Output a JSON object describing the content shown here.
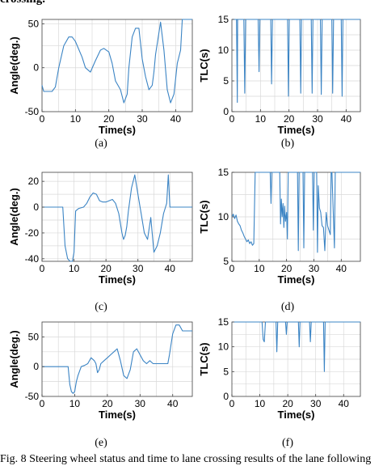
{
  "top_fragment": "crossing.",
  "caption": "Fig. 8 Steering wheel status and time to lane crossing results of the lane following",
  "colors": {
    "line": "#3b84c4",
    "grid": "#d9d9d9",
    "axis": "#404040"
  },
  "chart_data": [
    {
      "id": "a",
      "type": "line",
      "sublabel": "(a)",
      "xlabel": "Time(s)",
      "ylabel": "Angle(deg.)",
      "xlim": [
        0,
        45
      ],
      "ylim": [
        -50,
        55
      ],
      "xticks": [
        0,
        10,
        20,
        30,
        40
      ],
      "yticks": [
        -50,
        0,
        50
      ],
      "grid": true,
      "x": [
        0,
        0.5,
        3,
        4,
        5,
        6.5,
        8,
        9,
        10,
        12,
        13,
        14.5,
        16,
        17.5,
        18.5,
        20,
        21,
        22,
        23.5,
        24.5,
        25.5,
        26,
        27,
        28,
        29,
        30,
        31,
        32,
        33,
        33.5,
        34,
        35,
        35.5,
        36.5,
        37.5,
        38.5,
        39.5,
        40.5,
        41.5,
        42,
        45
      ],
      "y": [
        -20,
        -27,
        -27,
        -22,
        0,
        25,
        35,
        35,
        30,
        12,
        0,
        -5,
        8,
        20,
        22,
        18,
        5,
        -15,
        -25,
        -40,
        -30,
        0,
        35,
        45,
        45,
        10,
        -10,
        -25,
        -20,
        -5,
        15,
        40,
        52,
        20,
        -25,
        -40,
        -30,
        5,
        20,
        55,
        55
      ]
    },
    {
      "id": "b",
      "type": "line",
      "sublabel": "(b)",
      "xlabel": "Time(s)",
      "ylabel": "TLC(s)",
      "xlim": [
        0,
        45
      ],
      "ylim": [
        0,
        15
      ],
      "xticks": [
        0,
        10,
        20,
        30,
        40
      ],
      "yticks": [
        0,
        5,
        10,
        15
      ],
      "grid": true,
      "x": [
        0,
        0.8,
        1.6,
        1.9,
        2.0,
        4.2,
        4.5,
        4.8,
        9.2,
        9.5,
        9.8,
        13.6,
        13.9,
        14.2,
        19.5,
        19.8,
        20.1,
        23.8,
        24.1,
        24.4,
        27.8,
        28.1,
        28.4,
        31.0,
        31.3,
        31.6,
        35.0,
        35.3,
        35.6,
        38.3,
        38.6,
        38.9,
        45
      ],
      "y": [
        15,
        15,
        15,
        1.5,
        15,
        15,
        3,
        15,
        15,
        6.5,
        15,
        15,
        4.5,
        15,
        15,
        2.5,
        15,
        15,
        3,
        15,
        15,
        3,
        15,
        15,
        2.8,
        15,
        15,
        3,
        15,
        15,
        2.5,
        15,
        15
      ]
    },
    {
      "id": "c",
      "type": "line",
      "sublabel": "(c)",
      "xlabel": "Time(s)",
      "ylabel": "Angle(deg.)",
      "xlim": [
        0,
        47
      ],
      "ylim": [
        -42,
        27
      ],
      "xticks": [
        0,
        10,
        20,
        30,
        40
      ],
      "yticks": [
        -40,
        -20,
        0,
        20
      ],
      "grid": true,
      "x": [
        0,
        5,
        6.5,
        7.2,
        8.0,
        8.8,
        9.5,
        10.0,
        10.5,
        11.5,
        13,
        14,
        15,
        16,
        17,
        18,
        19,
        20,
        21,
        22,
        23,
        24,
        25,
        25.5,
        26,
        26.5,
        27,
        28,
        29,
        30,
        31,
        32,
        33,
        34,
        35,
        36,
        37,
        38,
        39,
        39.5,
        40,
        42,
        47
      ],
      "y": [
        0,
        0,
        0,
        -30,
        -40,
        -42,
        -42,
        -35,
        -3,
        -1,
        0,
        3,
        8,
        11,
        10,
        5,
        4,
        4,
        5,
        6,
        3,
        -5,
        -20,
        -25,
        -22,
        -15,
        -3,
        15,
        25,
        10,
        -5,
        -20,
        -25,
        -8,
        -35,
        -30,
        -20,
        -5,
        3,
        25,
        0,
        0,
        0
      ]
    },
    {
      "id": "d",
      "type": "line",
      "sublabel": "(d)",
      "xlabel": "Time(s)",
      "ylabel": "TLC(s)",
      "xlim": [
        0,
        47
      ],
      "ylim": [
        5,
        15
      ],
      "xticks": [
        0,
        10,
        20,
        30,
        40
      ],
      "yticks": [
        5,
        10,
        15
      ],
      "grid": true,
      "x": [
        0,
        0.5,
        1,
        1.5,
        2,
        2.5,
        3,
        3.5,
        4,
        4.5,
        5,
        5.5,
        6,
        6.5,
        7,
        7.5,
        8,
        8.5,
        14,
        14.3,
        14.6,
        17.5,
        17.8,
        18.1,
        18.4,
        18.7,
        19.0,
        19.3,
        19.6,
        20.0,
        20.3,
        20.6,
        24,
        24.3,
        24.6,
        26,
        26.3,
        26.6,
        29.5,
        29.8,
        30.1,
        31,
        31.3,
        31.6,
        32,
        32.5,
        33,
        33.5,
        34,
        34.5,
        35,
        35.5,
        36,
        36.3,
        36.6,
        37.5,
        37.8,
        38.1,
        47
      ],
      "y": [
        10,
        10.3,
        9.8,
        10.2,
        9.5,
        9.2,
        9.0,
        8.5,
        8.2,
        7.8,
        7.5,
        7.2,
        7.4,
        7.0,
        7.2,
        6.8,
        7.0,
        15,
        15,
        11.5,
        15,
        15,
        9.2,
        12,
        10,
        11.5,
        8.8,
        11.2,
        9.5,
        10.5,
        7.5,
        15,
        15,
        6.2,
        15,
        15,
        6.5,
        15,
        15,
        8.5,
        15,
        15,
        6.0,
        13.5,
        11,
        10.5,
        9,
        8.8,
        6.2,
        10.5,
        9,
        8.5,
        8,
        15,
        15,
        6.5,
        15,
        15,
        15
      ]
    },
    {
      "id": "e",
      "type": "line",
      "sublabel": "(e)",
      "xlabel": "Time(s)",
      "ylabel": "Angle(deg.)",
      "xlim": [
        0,
        46
      ],
      "ylim": [
        -50,
        75
      ],
      "xticks": [
        0,
        10,
        20,
        30,
        40
      ],
      "yticks": [
        -50,
        0,
        50
      ],
      "grid": true,
      "x": [
        0,
        7.5,
        8,
        8.5,
        9.0,
        9.5,
        10.0,
        10.5,
        11,
        12,
        13,
        14,
        15,
        16,
        16.5,
        17,
        17.5,
        18,
        19,
        20,
        21,
        22,
        23,
        24,
        25,
        26,
        27,
        28,
        29,
        30,
        31,
        32,
        33,
        34,
        35,
        38,
        38.5,
        39,
        40,
        41,
        42,
        43,
        46
      ],
      "y": [
        0,
        0,
        0,
        -30,
        -42,
        -45,
        -42,
        -25,
        -15,
        0,
        2,
        5,
        15,
        10,
        5,
        -10,
        -5,
        5,
        10,
        15,
        20,
        25,
        30,
        10,
        -15,
        -20,
        -5,
        25,
        30,
        20,
        10,
        5,
        10,
        5,
        5,
        5,
        5,
        20,
        55,
        70,
        70,
        60,
        60
      ]
    },
    {
      "id": "f",
      "type": "line",
      "sublabel": "(f)",
      "xlabel": "Time(s)",
      "ylabel": "TLC(s)",
      "xlim": [
        0,
        46
      ],
      "ylim": [
        0,
        15
      ],
      "xticks": [
        0,
        10,
        20,
        30,
        40
      ],
      "yticks": [
        0,
        5,
        10,
        15
      ],
      "grid": true,
      "x": [
        0,
        10.5,
        10.8,
        11.2,
        11.6,
        12.0,
        12.4,
        15.8,
        16.1,
        16.4,
        19.2,
        19.5,
        19.8,
        23.8,
        24.1,
        24.4,
        27.8,
        28.1,
        28.4,
        32.8,
        33.1,
        33.4,
        46
      ],
      "y": [
        15,
        15,
        15,
        11.5,
        11,
        15,
        15,
        15,
        9,
        15,
        15,
        12.5,
        15,
        15,
        10,
        15,
        15,
        11,
        15,
        15,
        5,
        15,
        15
      ]
    }
  ]
}
